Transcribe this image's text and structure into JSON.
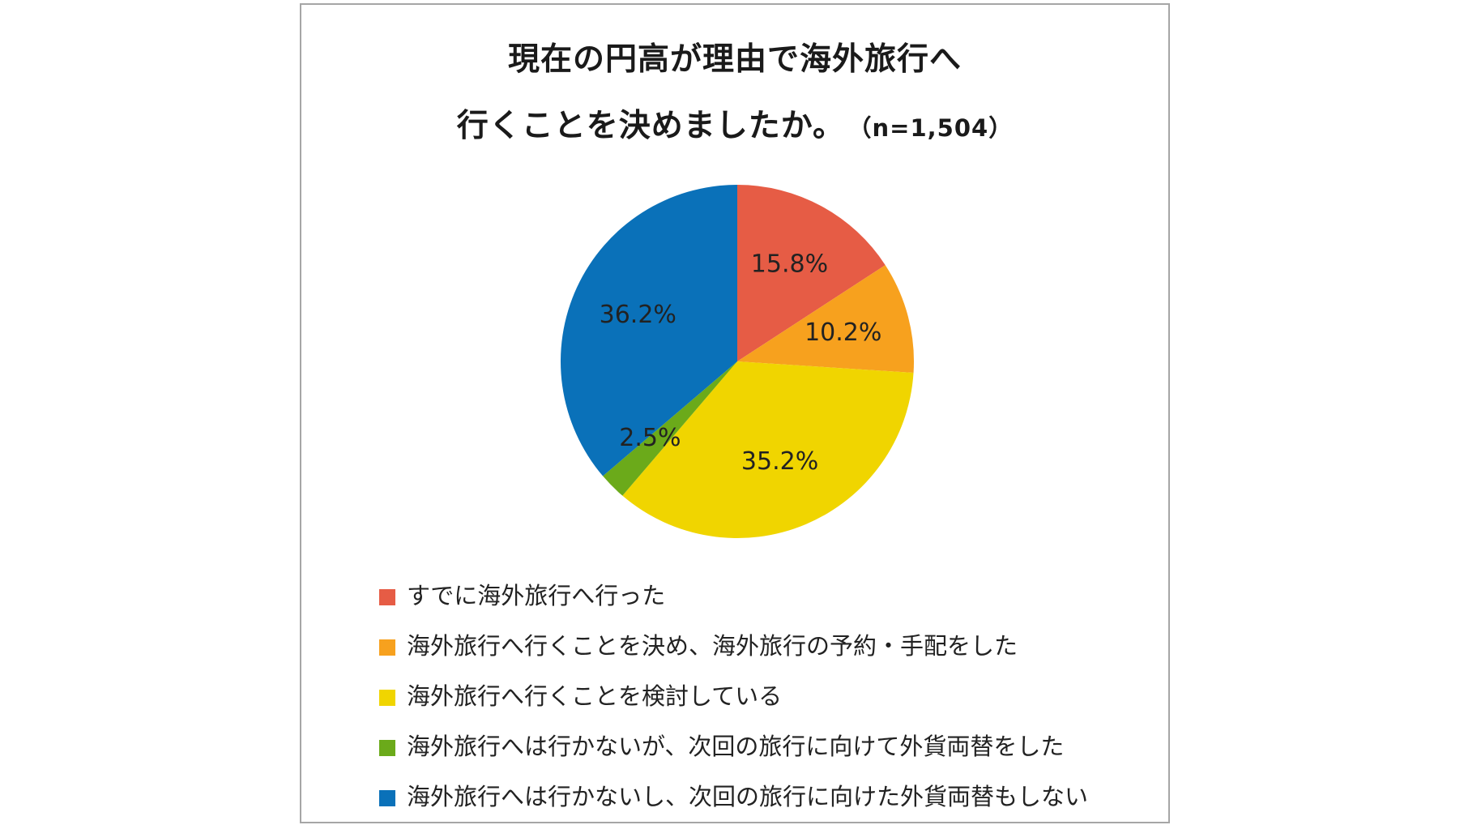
{
  "title": {
    "line1": "現在の円高が理由で海外旅行へ",
    "line2": "行くことを決めましたか。",
    "sample": "（n=1,504）"
  },
  "chart_data": {
    "type": "pie",
    "labels": [
      "すでに海外旅行へ行った",
      "海外旅行へ行くことを決め、海外旅行の予約・手配をした",
      "海外旅行へ行くことを検討している",
      "海外旅行へは行かないが、次回の旅行に向けて外貨両替をした",
      "海外旅行へは行かないし、次回の旅行に向けた外貨両替もしない"
    ],
    "values": [
      15.8,
      10.2,
      35.2,
      2.5,
      36.2
    ],
    "data_labels": [
      "15.8%",
      "10.2%",
      "35.2%",
      "2.5%",
      "36.2%"
    ],
    "colors": [
      "#E65C45",
      "#F7A11E",
      "#F0D500",
      "#6BAA1A",
      "#0A71B9"
    ],
    "start_angle": "12 o'clock",
    "direction": "clockwise",
    "legend_position": "bottom"
  }
}
